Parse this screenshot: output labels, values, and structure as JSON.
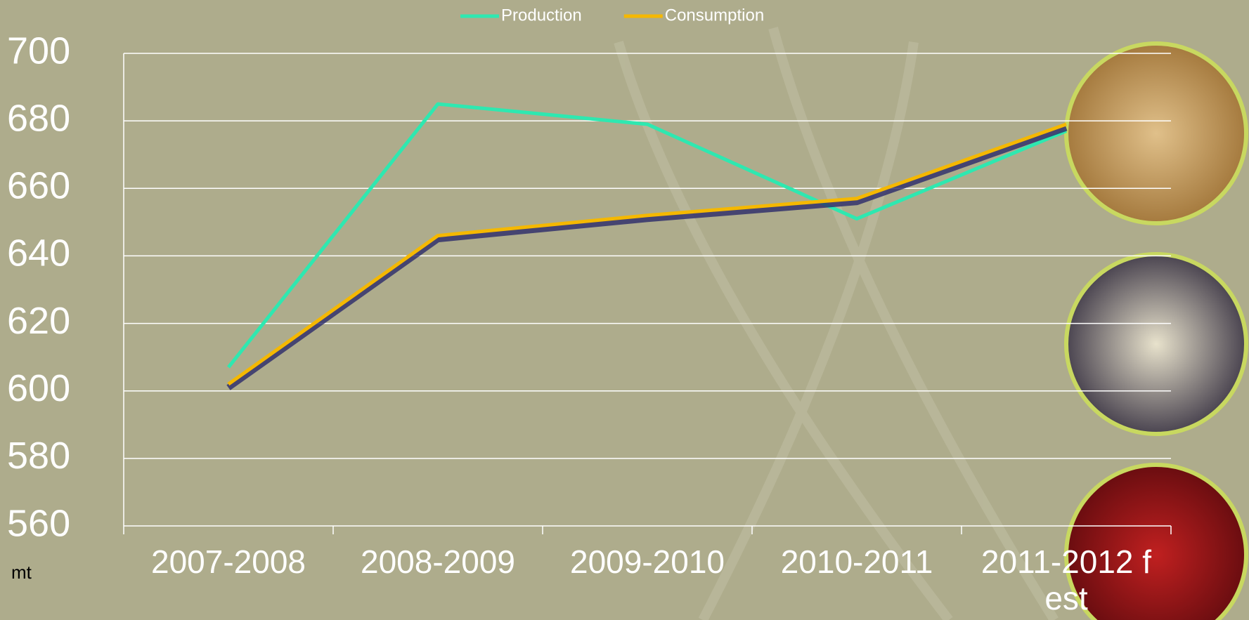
{
  "chart_data": {
    "type": "line",
    "categories": [
      "2007-2008",
      "2008-2009",
      "2009-2010",
      "2010-2011",
      "2011-2012 f est"
    ],
    "series": [
      {
        "name": "Production",
        "color": "#2ee8b0",
        "values": [
          607,
          685,
          679,
          651,
          677
        ]
      },
      {
        "name": "Consumption",
        "color": "#f5b800",
        "values": [
          602,
          646,
          652,
          657,
          679
        ]
      }
    ],
    "ylabel": "mt",
    "ylim": [
      560,
      700
    ],
    "yticks": [
      560,
      580,
      600,
      620,
      640,
      660,
      680,
      700
    ],
    "grid": true,
    "legend": "top"
  }
}
